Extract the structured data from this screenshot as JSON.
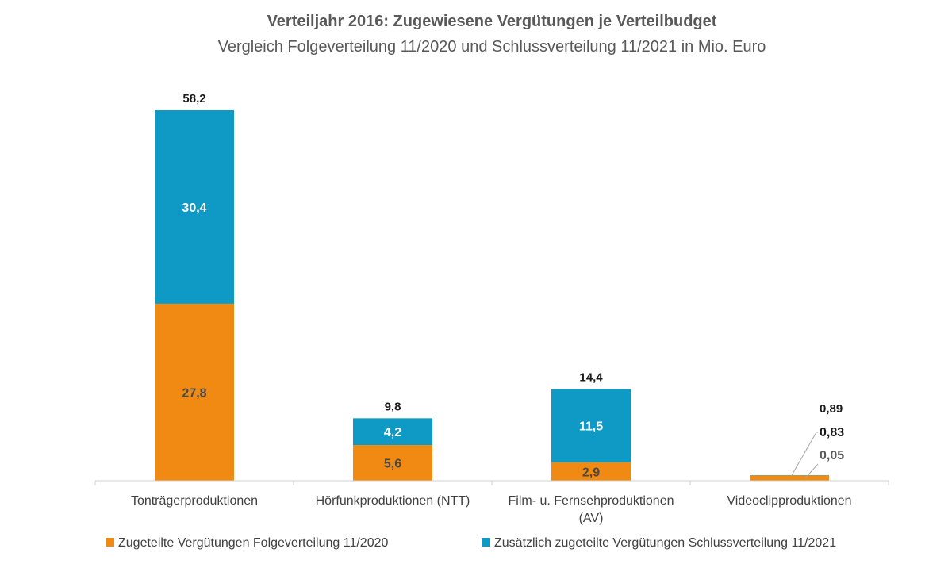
{
  "chart_data": {
    "type": "bar",
    "stacked": true,
    "title": "Verteiljahr 2016: Zugewiesene Vergütungen je Verteilbudget",
    "subtitle": "Vergleich Folgeverteilung 11/2020 und Schlussverteilung 11/2021 in Mio. Euro",
    "categories": [
      [
        "Tonträgerproduktionen"
      ],
      [
        "Hörfunkproduktionen (NTT)"
      ],
      [
        "Film- u. Fernsehproduktionen",
        "(AV)"
      ],
      [
        "Videoclipproduktionen"
      ]
    ],
    "series": [
      {
        "name": "Zugeteilte Vergütungen Folgeverteilung 11/2020",
        "color": "#F08A12",
        "values": [
          27.8,
          5.6,
          2.9,
          0.83
        ],
        "labels": [
          "27,8",
          "5,6",
          "2,9",
          "0,83"
        ]
      },
      {
        "name": "Zusätzlich zugeteilte Vergütungen Schlussverteilung 11/2021",
        "color": "#0E9AC5",
        "values": [
          30.4,
          4.2,
          11.5,
          0.05
        ],
        "labels": [
          "30,4",
          "4,2",
          "11,5",
          "0,05"
        ]
      }
    ],
    "totals": [
      58.2,
      9.8,
      14.4,
      0.89
    ],
    "total_labels": [
      "58,2",
      "9,8",
      "14,4",
      "0,89"
    ],
    "ylim": [
      0,
      64
    ],
    "grid": false,
    "legend_position": "bottom"
  }
}
